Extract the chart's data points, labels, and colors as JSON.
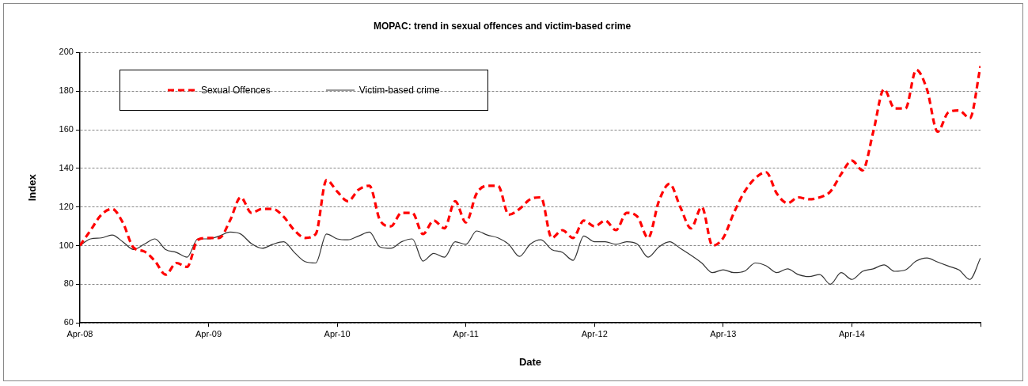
{
  "chart_data": {
    "type": "line",
    "title": "MOPAC: trend in sexual offences and victim-based crime",
    "xlabel": "Date",
    "ylabel": "Index",
    "x": [
      "2008-04",
      "2008-05",
      "2008-06",
      "2008-07",
      "2008-08",
      "2008-09",
      "2008-10",
      "2008-11",
      "2008-12",
      "2009-01",
      "2009-02",
      "2009-03",
      "2009-04",
      "2009-05",
      "2009-06",
      "2009-07",
      "2009-08",
      "2009-09",
      "2009-10",
      "2009-11",
      "2009-12",
      "2010-01",
      "2010-02",
      "2010-03",
      "2010-04",
      "2010-05",
      "2010-06",
      "2010-07",
      "2010-08",
      "2010-09",
      "2010-10",
      "2010-11",
      "2010-12",
      "2011-01",
      "2011-02",
      "2011-03",
      "2011-04",
      "2011-05",
      "2011-06",
      "2011-07",
      "2011-08",
      "2011-09",
      "2011-10",
      "2011-11",
      "2011-12",
      "2012-01",
      "2012-02",
      "2012-03",
      "2012-04",
      "2012-05",
      "2012-06",
      "2012-07",
      "2012-08",
      "2012-09",
      "2012-10",
      "2012-11",
      "2012-12",
      "2013-01",
      "2013-02",
      "2013-03",
      "2013-04",
      "2013-05",
      "2013-06",
      "2013-07",
      "2013-08",
      "2013-09",
      "2013-10",
      "2013-11",
      "2013-12",
      "2014-01",
      "2014-02",
      "2014-03",
      "2014-04",
      "2014-05",
      "2014-06",
      "2014-07",
      "2014-08",
      "2014-09",
      "2014-10",
      "2014-11",
      "2014-12",
      "2015-01",
      "2015-02",
      "2015-03",
      "2015-04"
    ],
    "series": [
      {
        "name": "Sexual Offences",
        "color": "#ff0000",
        "line_style": "dashed",
        "values": [
          100,
          108,
          116,
          119,
          112,
          99,
          97,
          92,
          85,
          91,
          89,
          103,
          104,
          104,
          113,
          125,
          117,
          119,
          119,
          115,
          108,
          104,
          106,
          134,
          128,
          123,
          129,
          131,
          113,
          110,
          117,
          117,
          106,
          113,
          109,
          123,
          112,
          127,
          131,
          131,
          116,
          119,
          124,
          125,
          104,
          108,
          104,
          113,
          110,
          113,
          108,
          117,
          115,
          104,
          123,
          132,
          120,
          109,
          120,
          100,
          104,
          117,
          128,
          135,
          138,
          127,
          122,
          125,
          124,
          125,
          128,
          137,
          144,
          139,
          159,
          181,
          171,
          171,
          191,
          181,
          159,
          169,
          170,
          166,
          193
        ]
      },
      {
        "name": "Victim-based crime",
        "color": "#333333",
        "line_style": "solid",
        "values": [
          100,
          103.5,
          104,
          105.5,
          102,
          98,
          100.7,
          103.5,
          98,
          96.5,
          94,
          103.5,
          103.5,
          105,
          107,
          106,
          101,
          98.6,
          100.7,
          102,
          96.5,
          91.7,
          91,
          106,
          103.5,
          103,
          105,
          107,
          99.3,
          98.6,
          102,
          103.5,
          92,
          96,
          94,
          102,
          100.7,
          107.6,
          105.5,
          104,
          100.7,
          94.4,
          100.7,
          103,
          98,
          96.5,
          92.4,
          105,
          102,
          102,
          100.7,
          102,
          100.7,
          94,
          99.3,
          102,
          98.6,
          95,
          91,
          86,
          87.5,
          86,
          86.8,
          91,
          89.6,
          86,
          88,
          85,
          84,
          85,
          80,
          86,
          82.5,
          86.7,
          88,
          90,
          86.7,
          87.4,
          92,
          93.6,
          91.5,
          89.4,
          87.4,
          82.5,
          93.6
        ]
      }
    ],
    "xlim": [
      "2008-04",
      "2015-04"
    ],
    "xticks": [
      {
        "value": "2008-04",
        "label": "Apr-08"
      },
      {
        "value": "2009-04",
        "label": "Apr-09"
      },
      {
        "value": "2010-04",
        "label": "Apr-10"
      },
      {
        "value": "2011-04",
        "label": "Apr-11"
      },
      {
        "value": "2012-04",
        "label": "Apr-12"
      },
      {
        "value": "2013-04",
        "label": "Apr-13"
      },
      {
        "value": "2014-04",
        "label": "Apr-14"
      },
      {
        "value": "2015-04",
        "label": null
      }
    ],
    "ylim": [
      60,
      200
    ],
    "yticks": [
      60,
      80,
      100,
      120,
      140,
      160,
      180,
      200
    ],
    "grid": "y",
    "legend": "top left",
    "marker": "none"
  }
}
